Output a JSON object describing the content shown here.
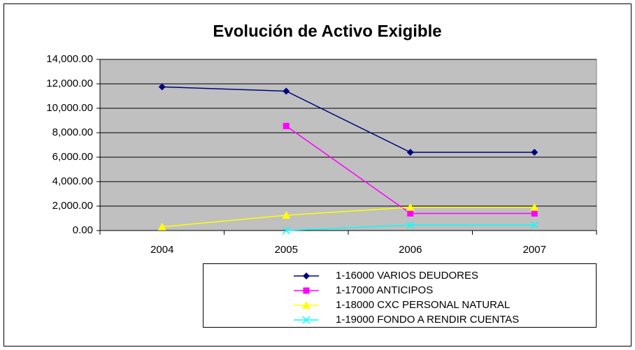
{
  "chart_data": {
    "type": "line",
    "title": "Evolución de Activo Exigible",
    "categories": [
      "2004",
      "2005",
      "2006",
      "2007"
    ],
    "series": [
      {
        "name": "1-16000 VARIOS DEUDORES",
        "color": "#000080",
        "marker": "diamond",
        "values": [
          11750,
          11400,
          6400,
          6400
        ]
      },
      {
        "name": "1-17000 ANTICIPOS",
        "color": "#ff00ff",
        "marker": "square",
        "values": [
          null,
          8550,
          1400,
          1400
        ]
      },
      {
        "name": "1-18000 CXC PERSONAL NATURAL",
        "color": "#ffff00",
        "marker": "triangle",
        "values": [
          300,
          1250,
          1900,
          1900
        ]
      },
      {
        "name": "1-19000 FONDO A RENDIR CUENTAS",
        "color": "#00ffff",
        "marker": "x",
        "values": [
          null,
          0,
          450,
          450
        ]
      }
    ],
    "ylim": [
      0,
      14000
    ],
    "yticks": [
      {
        "value": 0,
        "label": "0.00"
      },
      {
        "value": 2000,
        "label": "2,000.00"
      },
      {
        "value": 4000,
        "label": "4,000.00"
      },
      {
        "value": 6000,
        "label": "6,000.00"
      },
      {
        "value": 8000,
        "label": "8,000.00"
      },
      {
        "value": 10000,
        "label": "10,000.00"
      },
      {
        "value": 12000,
        "label": "12,000.00"
      },
      {
        "value": 14000,
        "label": "14,000.00"
      }
    ],
    "grid": true,
    "plot_background": "#c0c0c0"
  }
}
